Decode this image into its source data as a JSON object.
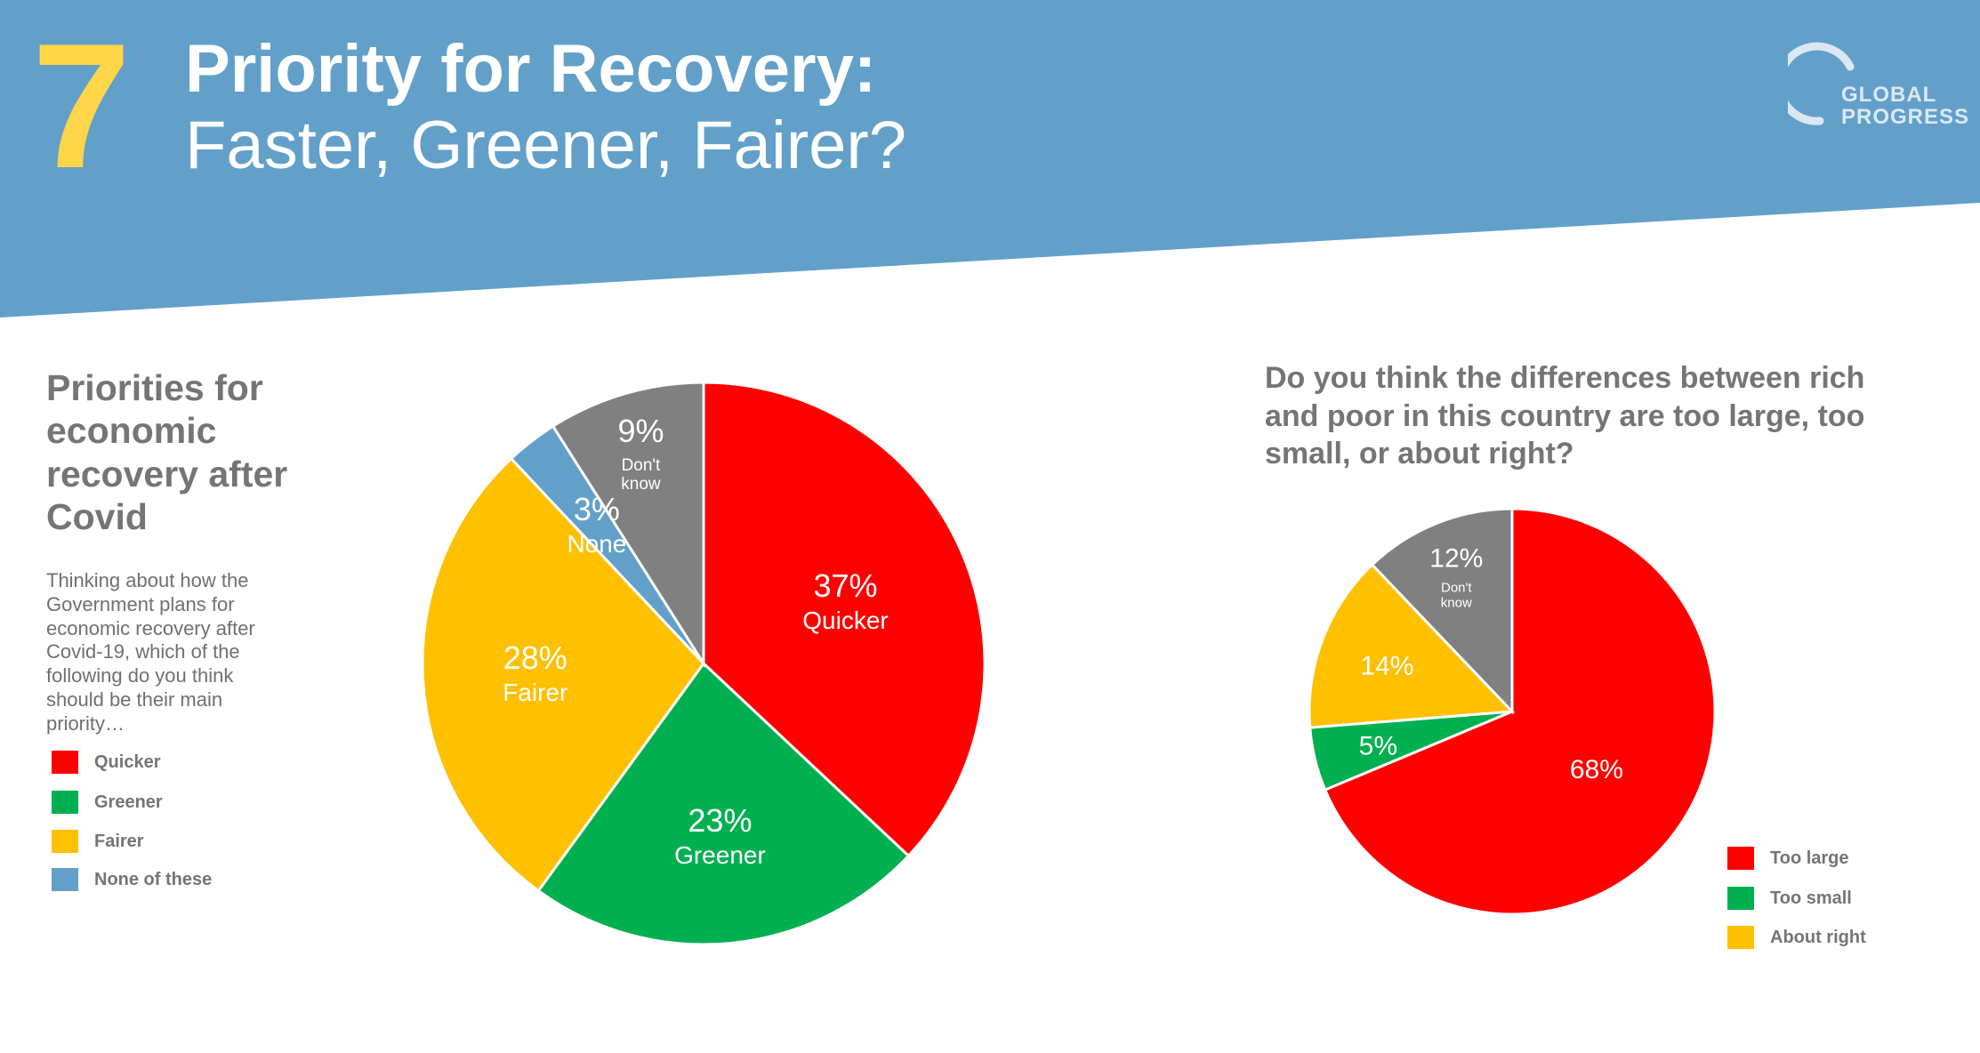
{
  "header": {
    "number": "7",
    "title_line1": "Priority for Recovery:",
    "title_line2": "Faster, Greener, Fairer?",
    "logo_line1": "GLOBAL",
    "logo_line2": "PROGRESS"
  },
  "colors": {
    "banner": "#62A0CA",
    "number": "#FFD54A",
    "red": "#FF0000",
    "green": "#00B050",
    "yellow": "#FFC000",
    "blue": "#62A0CA",
    "grey": "#808080",
    "text_grey": "#757575"
  },
  "left": {
    "title": "Priorities for economic recovery after Covid",
    "description": "Thinking about how the Government plans for economic recovery after Covid-19, which of the following do you think should be their main priority…",
    "legend": [
      {
        "label": "Quicker",
        "color": "#FF0000"
      },
      {
        "label": "Greener",
        "color": "#00B050"
      },
      {
        "label": "Fairer",
        "color": "#FFC000"
      },
      {
        "label": "None of these",
        "color": "#62A0CA"
      }
    ]
  },
  "right": {
    "question": "Do you think the differences between rich and poor in this country are too large, too small, or about right?",
    "legend": [
      {
        "label": "Too large",
        "color": "#FF0000"
      },
      {
        "label": "Too small",
        "color": "#00B050"
      },
      {
        "label": "About right",
        "color": "#FFC000"
      }
    ]
  },
  "chart_data": [
    {
      "type": "pie",
      "title": "Priorities for economic recovery after Covid",
      "slices": [
        {
          "label": "Quicker",
          "value": 37,
          "value_label": "37%",
          "slice_label": "Quicker",
          "color": "#FF0000"
        },
        {
          "label": "Greener",
          "value": 23,
          "value_label": "23%",
          "slice_label": "Greener",
          "color": "#00B050"
        },
        {
          "label": "Fairer",
          "value": 28,
          "value_label": "28%",
          "slice_label": "Fairer",
          "color": "#FFC000"
        },
        {
          "label": "None of these",
          "value": 3,
          "value_label": "3%",
          "slice_label": "None",
          "color": "#62A0CA"
        },
        {
          "label": "Don't know",
          "value": 9,
          "value_label": "9%",
          "slice_label": "Don't know",
          "color": "#808080"
        }
      ]
    },
    {
      "type": "pie",
      "title": "Do you think the differences between rich and poor in this country are too large, too small, or about right?",
      "slices": [
        {
          "label": "Too large",
          "value": 68,
          "value_label": "68%",
          "slice_label": "",
          "color": "#FF0000"
        },
        {
          "label": "Too small",
          "value": 5,
          "value_label": "5%",
          "slice_label": "",
          "color": "#00B050"
        },
        {
          "label": "About right",
          "value": 14,
          "value_label": "14%",
          "slice_label": "",
          "color": "#FFC000"
        },
        {
          "label": "Don't know",
          "value": 12,
          "value_label": "12%",
          "slice_label": "Don't know",
          "color": "#808080"
        }
      ]
    }
  ]
}
